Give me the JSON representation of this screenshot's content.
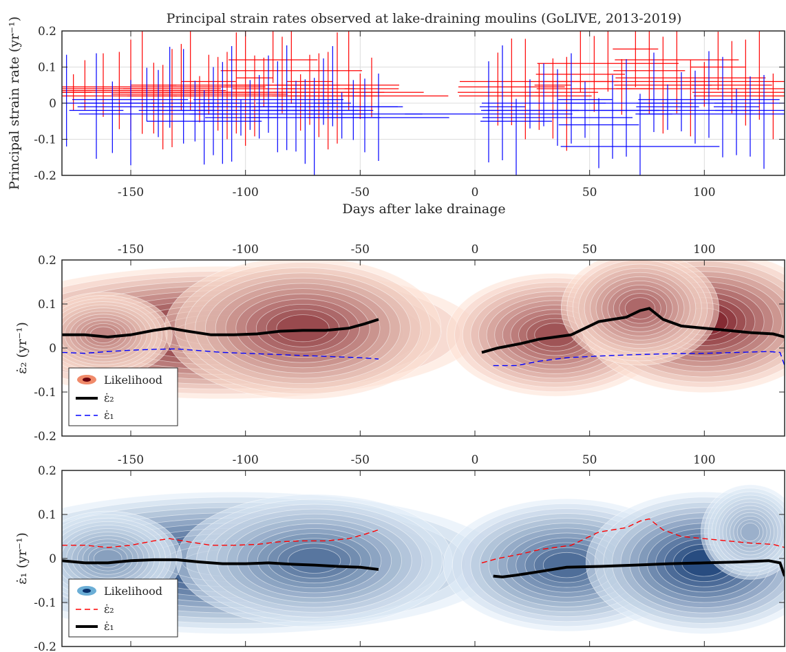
{
  "figure": {
    "title": "Principal strain rates observed at lake-draining moulins (GoLIVE, 2013-2019)",
    "xlabel": "Days after lake drainage"
  },
  "colors": {
    "eps1": "#0000ff",
    "eps2": "#ff0000",
    "mean_line": "#000000",
    "reds_light": "#fde0d2",
    "reds_dark": "#67000d",
    "blues_light": "#deebf7",
    "blues_dark": "#08306b"
  },
  "chart_data": [
    {
      "type": "scatter",
      "panel": "top",
      "title": "Principal strain rates observed at lake-draining moulins (GoLIVE, 2013-2019)",
      "xlabel": "Days after lake drainage",
      "ylabel": "Principal strain rate (yr⁻¹)",
      "xlim": [
        -180,
        135
      ],
      "ylim": [
        -0.2,
        0.2
      ],
      "xticks": [
        "-150",
        "-100",
        "-50",
        "0",
        "50",
        "100"
      ],
      "yticks": [
        "0.2",
        "0.1",
        "0",
        "-0.1",
        "-0.2"
      ],
      "grid": true,
      "series": [
        {
          "color": "red",
          "points": [
            [
              -175,
              0.03
            ],
            [
              -170,
              0.045
            ],
            [
              -162,
              0.04
            ],
            [
              -155,
              0.02
            ],
            [
              -150,
              0.03
            ],
            [
              -145,
              0.035
            ],
            [
              -140,
              0.05
            ],
            [
              -136,
              0.02
            ],
            [
              -132,
              0.04
            ],
            [
              -128,
              0.03
            ],
            [
              -124,
              0.045
            ],
            [
              -120,
              0.025
            ],
            [
              -116,
              0.06
            ],
            [
              -112,
              0.03
            ],
            [
              -108,
              0.02
            ],
            [
              -104,
              0.05
            ],
            [
              -100,
              0.03
            ],
            [
              -96,
              0.07
            ],
            [
              -92,
              0.04
            ],
            [
              -88,
              0.12
            ],
            [
              -84,
              0.05
            ],
            [
              -80,
              0.09
            ],
            [
              -76,
              0.03
            ],
            [
              -72,
              0.06
            ],
            [
              -68,
              0.04
            ],
            [
              -64,
              0.02
            ],
            [
              -60,
              0.05
            ],
            [
              -55,
              0.03
            ],
            [
              -50,
              0.02
            ],
            [
              -45,
              0.04
            ],
            [
              10,
              0.03
            ],
            [
              16,
              0.045
            ],
            [
              22,
              0.02
            ],
            [
              28,
              0.06
            ],
            [
              34,
              0.05
            ],
            [
              40,
              0.03
            ],
            [
              46,
              0.08
            ],
            [
              52,
              0.04
            ],
            [
              58,
              0.11
            ],
            [
              64,
              0.06
            ],
            [
              70,
              0.15
            ],
            [
              76,
              0.09
            ],
            [
              82,
              0.05
            ],
            [
              88,
              0.12
            ],
            [
              94,
              0.07
            ],
            [
              100,
              0.04
            ],
            [
              106,
              0.1
            ],
            [
              112,
              0.05
            ],
            [
              118,
              0.03
            ],
            [
              124,
              0.06
            ],
            [
              130,
              0.02
            ]
          ]
        },
        {
          "color": "blue",
          "points": [
            [
              -178,
              0.0
            ],
            [
              -165,
              -0.02
            ],
            [
              -158,
              0.01
            ],
            [
              -150,
              -0.01
            ],
            [
              -143,
              0.0
            ],
            [
              -138,
              -0.03
            ],
            [
              -133,
              0.01
            ],
            [
              -127,
              -0.02
            ],
            [
              -122,
              0.0
            ],
            [
              -118,
              -0.05
            ],
            [
              -114,
              -0.01
            ],
            [
              -110,
              -0.02
            ],
            [
              -106,
              0.0
            ],
            [
              -102,
              -0.04
            ],
            [
              -98,
              -0.01
            ],
            [
              -94,
              -0.02
            ],
            [
              -90,
              0.01
            ],
            [
              -86,
              -0.03
            ],
            [
              -82,
              -0.01
            ],
            [
              -78,
              0.0
            ],
            [
              -74,
              -0.02
            ],
            [
              -70,
              -0.04
            ],
            [
              -66,
              -0.01
            ],
            [
              -62,
              0.0
            ],
            [
              -58,
              -0.02
            ],
            [
              -53,
              -0.01
            ],
            [
              -48,
              -0.03
            ],
            [
              -42,
              -0.04
            ],
            [
              6,
              -0.03
            ],
            [
              12,
              -0.01
            ],
            [
              18,
              -0.05
            ],
            [
              24,
              -0.02
            ],
            [
              30,
              0.0
            ],
            [
              36,
              -0.04
            ],
            [
              42,
              -0.02
            ],
            [
              48,
              0.01
            ],
            [
              54,
              -0.06
            ],
            [
              60,
              -0.02
            ],
            [
              66,
              0.0
            ],
            [
              72,
              -0.12
            ],
            [
              78,
              -0.03
            ],
            [
              84,
              -0.01
            ],
            [
              90,
              0.0
            ],
            [
              96,
              -0.02
            ],
            [
              102,
              0.01
            ],
            [
              108,
              -0.03
            ],
            [
              114,
              -0.01
            ],
            [
              120,
              0.0
            ],
            [
              126,
              -0.02
            ]
          ]
        }
      ]
    },
    {
      "type": "heatmap",
      "panel": "middle",
      "ylabel": "ε̇₂ (yr⁻¹)",
      "xlim": [
        -180,
        135
      ],
      "ylim": [
        -0.2,
        0.2
      ],
      "xticks": [
        "-150",
        "-100",
        "-50",
        "0",
        "50",
        "100"
      ],
      "yticks": [
        "0.2",
        "0.1",
        "0",
        "-0.1",
        "-0.2"
      ],
      "colormap": "reds",
      "legend_position": "bottom-left",
      "legend": [
        "Likelihood",
        "ε̇₂",
        "ε̇₁"
      ],
      "series": [
        {
          "style": "solid-black",
          "x": [
            -180,
            -170,
            -160,
            -150,
            -140,
            -133,
            -125,
            -115,
            -105,
            -95,
            -85,
            -75,
            -65,
            -55,
            -48,
            -42
          ],
          "y": [
            0.03,
            0.03,
            0.025,
            0.03,
            0.04,
            0.045,
            0.038,
            0.03,
            0.03,
            0.032,
            0.038,
            0.04,
            0.04,
            0.045,
            0.055,
            0.065
          ]
        },
        {
          "style": "solid-black",
          "x": [
            3,
            10,
            20,
            28,
            35,
            42,
            48,
            54,
            60,
            66,
            72,
            76,
            82,
            90,
            100,
            110,
            120,
            130,
            135
          ],
          "y": [
            -0.01,
            0.0,
            0.01,
            0.02,
            0.025,
            0.03,
            0.045,
            0.06,
            0.065,
            0.07,
            0.085,
            0.09,
            0.065,
            0.05,
            0.045,
            0.04,
            0.035,
            0.032,
            0.025
          ]
        },
        {
          "style": "dashed-blue",
          "x": [
            -180,
            -170,
            -160,
            -150,
            -140,
            -130,
            -120,
            -110,
            -100,
            -90,
            -80,
            -70,
            -60,
            -50,
            -42
          ],
          "y": [
            -0.01,
            -0.012,
            -0.008,
            -0.005,
            -0.003,
            -0.002,
            -0.006,
            -0.01,
            -0.012,
            -0.014,
            -0.016,
            -0.018,
            -0.02,
            -0.022,
            -0.025
          ]
        },
        {
          "style": "dashed-blue",
          "x": [
            8,
            18,
            28,
            40,
            55,
            70,
            85,
            100,
            115,
            128,
            133,
            135
          ],
          "y": [
            -0.04,
            -0.04,
            -0.03,
            -0.022,
            -0.018,
            -0.015,
            -0.013,
            -0.012,
            -0.01,
            -0.008,
            -0.01,
            -0.04
          ]
        }
      ],
      "density": [
        {
          "cx": -110,
          "cy": 0.035,
          "sx": 52,
          "sy": 0.07,
          "w": 1.0
        },
        {
          "cx": -75,
          "cy": 0.045,
          "sx": 28,
          "sy": 0.075,
          "w": 0.75
        },
        {
          "cx": -162,
          "cy": 0.03,
          "sx": 14,
          "sy": 0.045,
          "w": 0.45
        },
        {
          "cx": 35,
          "cy": 0.03,
          "sx": 22,
          "sy": 0.065,
          "w": 0.7
        },
        {
          "cx": 100,
          "cy": 0.06,
          "sx": 25,
          "sy": 0.075,
          "w": 0.9
        },
        {
          "cx": 72,
          "cy": 0.09,
          "sx": 16,
          "sy": 0.06,
          "w": 0.6
        }
      ]
    },
    {
      "type": "heatmap",
      "panel": "bottom",
      "ylabel": "ε̇₁ (yr⁻¹)",
      "xlim": [
        -180,
        135
      ],
      "ylim": [
        -0.2,
        0.2
      ],
      "xticks": [
        "-150",
        "-100",
        "-50",
        "0",
        "50",
        "100"
      ],
      "yticks": [
        "0.2",
        "0.1",
        "0",
        "-0.1",
        "-0.2"
      ],
      "colormap": "blues",
      "legend_position": "bottom-left",
      "legend": [
        "Likelihood",
        "ε̇₂",
        "ε̇₁"
      ],
      "series": [
        {
          "style": "dashed-red",
          "x": [
            -180,
            -170,
            -160,
            -150,
            -140,
            -133,
            -125,
            -115,
            -105,
            -95,
            -85,
            -75,
            -65,
            -55,
            -48,
            -42
          ],
          "y": [
            0.03,
            0.03,
            0.025,
            0.03,
            0.04,
            0.045,
            0.038,
            0.03,
            0.03,
            0.032,
            0.038,
            0.04,
            0.04,
            0.045,
            0.055,
            0.065
          ]
        },
        {
          "style": "dashed-red",
          "x": [
            3,
            10,
            20,
            28,
            35,
            42,
            48,
            54,
            60,
            66,
            72,
            76,
            82,
            90,
            100,
            110,
            120,
            130,
            135
          ],
          "y": [
            -0.01,
            0.0,
            0.01,
            0.02,
            0.025,
            0.03,
            0.045,
            0.06,
            0.065,
            0.07,
            0.085,
            0.09,
            0.065,
            0.05,
            0.045,
            0.04,
            0.035,
            0.032,
            0.025
          ]
        },
        {
          "style": "solid-black",
          "x": [
            -180,
            -170,
            -160,
            -150,
            -140,
            -130,
            -120,
            -110,
            -100,
            -90,
            -80,
            -70,
            -60,
            -50,
            -42
          ],
          "y": [
            -0.005,
            -0.01,
            -0.01,
            -0.005,
            -0.003,
            -0.003,
            -0.008,
            -0.012,
            -0.012,
            -0.01,
            -0.013,
            -0.015,
            -0.018,
            -0.02,
            -0.025
          ]
        },
        {
          "style": "solid-black",
          "x": [
            8,
            12,
            18,
            28,
            40,
            55,
            70,
            85,
            100,
            115,
            128,
            133,
            135
          ],
          "y": [
            -0.04,
            -0.042,
            -0.038,
            -0.03,
            -0.02,
            -0.018,
            -0.015,
            -0.012,
            -0.01,
            -0.008,
            -0.005,
            -0.01,
            -0.04
          ]
        }
      ],
      "density": [
        {
          "cx": -105,
          "cy": -0.01,
          "sx": 55,
          "sy": 0.075,
          "w": 1.0
        },
        {
          "cx": -70,
          "cy": -0.005,
          "sx": 28,
          "sy": 0.07,
          "w": 0.7
        },
        {
          "cx": -160,
          "cy": 0.0,
          "sx": 15,
          "sy": 0.05,
          "w": 0.45
        },
        {
          "cx": 40,
          "cy": -0.015,
          "sx": 25,
          "sy": 0.07,
          "w": 0.75
        },
        {
          "cx": 100,
          "cy": -0.01,
          "sx": 24,
          "sy": 0.075,
          "w": 0.95
        },
        {
          "cx": 120,
          "cy": 0.06,
          "sx": 10,
          "sy": 0.05,
          "w": 0.35
        }
      ]
    }
  ]
}
